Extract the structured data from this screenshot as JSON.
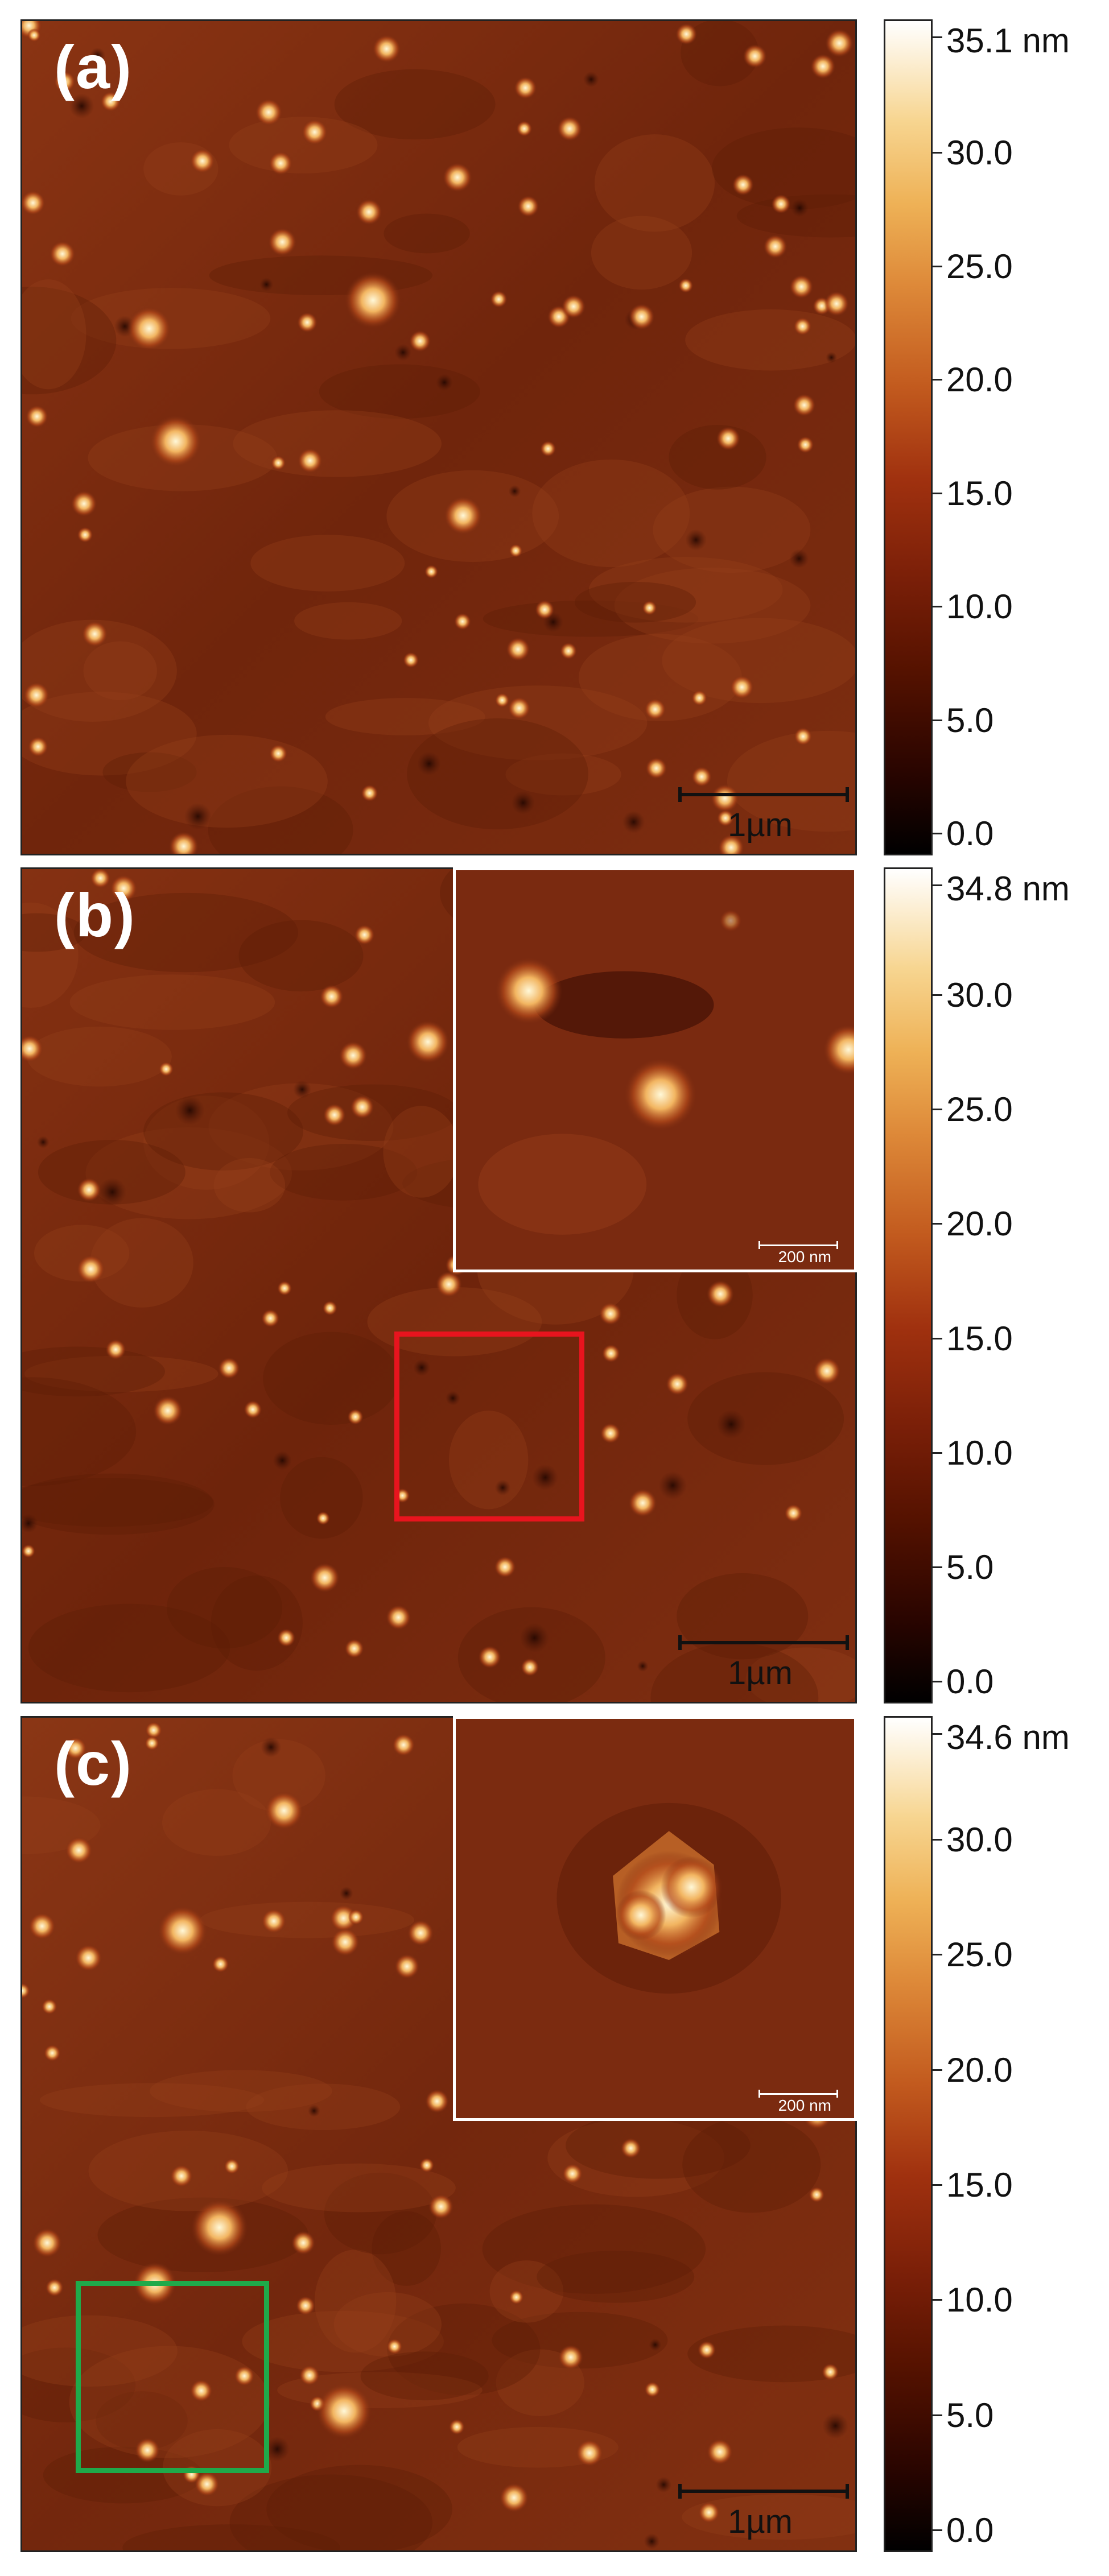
{
  "panels": [
    {
      "id": "a",
      "label": "(a)",
      "scale_bar": "1µm",
      "colorbar": {
        "max_label": "35.1 nm",
        "ticks": [
          "30.0",
          "25.0",
          "20.0",
          "15.0",
          "10.0",
          "5.0",
          "0.0"
        ]
      },
      "has_inset": false
    },
    {
      "id": "b",
      "label": "(b)",
      "scale_bar": "1µm",
      "colorbar": {
        "max_label": "34.8 nm",
        "ticks": [
          "30.0",
          "25.0",
          "20.0",
          "15.0",
          "10.0",
          "5.0",
          "0.0"
        ]
      },
      "has_inset": true,
      "inset_scale_bar": "200 nm",
      "roi_color": "#e8141e"
    },
    {
      "id": "c",
      "label": "(c)",
      "scale_bar": "1µm",
      "colorbar": {
        "max_label": "34.6 nm",
        "ticks": [
          "30.0",
          "25.0",
          "20.0",
          "15.0",
          "10.0",
          "5.0",
          "0.0"
        ]
      },
      "has_inset": true,
      "inset_scale_bar": "200 nm",
      "roi_color": "#1faa4a"
    }
  ],
  "colors": {
    "surface_base": "#7a2a10",
    "highlight": "#fff3c6",
    "frame": "#222222"
  }
}
